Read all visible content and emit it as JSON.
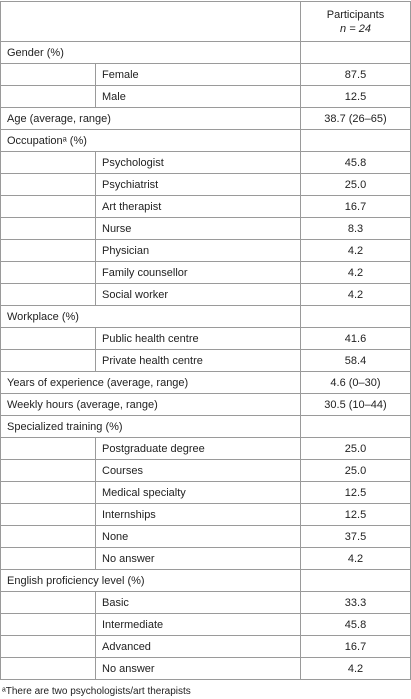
{
  "table": {
    "header": {
      "title": "Participants",
      "n": "n = 24"
    },
    "sections": [
      {
        "label": "Gender (%)",
        "items": [
          {
            "label": "Female",
            "value": "87.5"
          },
          {
            "label": "Male",
            "value": "12.5"
          }
        ]
      },
      {
        "label": "Age (average, range)",
        "value": "38.7 (26–65)"
      },
      {
        "label": "Occupationᵃ (%)",
        "items": [
          {
            "label": "Psychologist",
            "value": "45.8"
          },
          {
            "label": "Psychiatrist",
            "value": "25.0"
          },
          {
            "label": "Art therapist",
            "value": "16.7"
          },
          {
            "label": "Nurse",
            "value": "8.3"
          },
          {
            "label": "Physician",
            "value": "4.2"
          },
          {
            "label": "Family counsellor",
            "value": "4.2"
          },
          {
            "label": "Social worker",
            "value": "4.2"
          }
        ]
      },
      {
        "label": "Workplace (%)",
        "items": [
          {
            "label": "Public health centre",
            "value": "41.6"
          },
          {
            "label": "Private health centre",
            "value": "58.4"
          }
        ]
      },
      {
        "label": "Years of experience (average, range)",
        "value": "4.6 (0–30)"
      },
      {
        "label": "Weekly hours (average, range)",
        "value": "30.5 (10–44)"
      },
      {
        "label": "Specialized training (%)",
        "items": [
          {
            "label": "Postgraduate degree",
            "value": "25.0"
          },
          {
            "label": "Courses",
            "value": "25.0"
          },
          {
            "label": "Medical specialty",
            "value": "12.5"
          },
          {
            "label": "Internships",
            "value": "12.5"
          },
          {
            "label": "None",
            "value": "37.5"
          },
          {
            "label": "No answer",
            "value": "4.2"
          }
        ]
      },
      {
        "label": "English proficiency level (%)",
        "items": [
          {
            "label": "Basic",
            "value": "33.3"
          },
          {
            "label": "Intermediate",
            "value": "45.8"
          },
          {
            "label": "Advanced",
            "value": "16.7"
          },
          {
            "label": "No answer",
            "value": "4.2"
          }
        ]
      }
    ],
    "footnote": "ᵃThere are two psychologists/art therapists"
  }
}
